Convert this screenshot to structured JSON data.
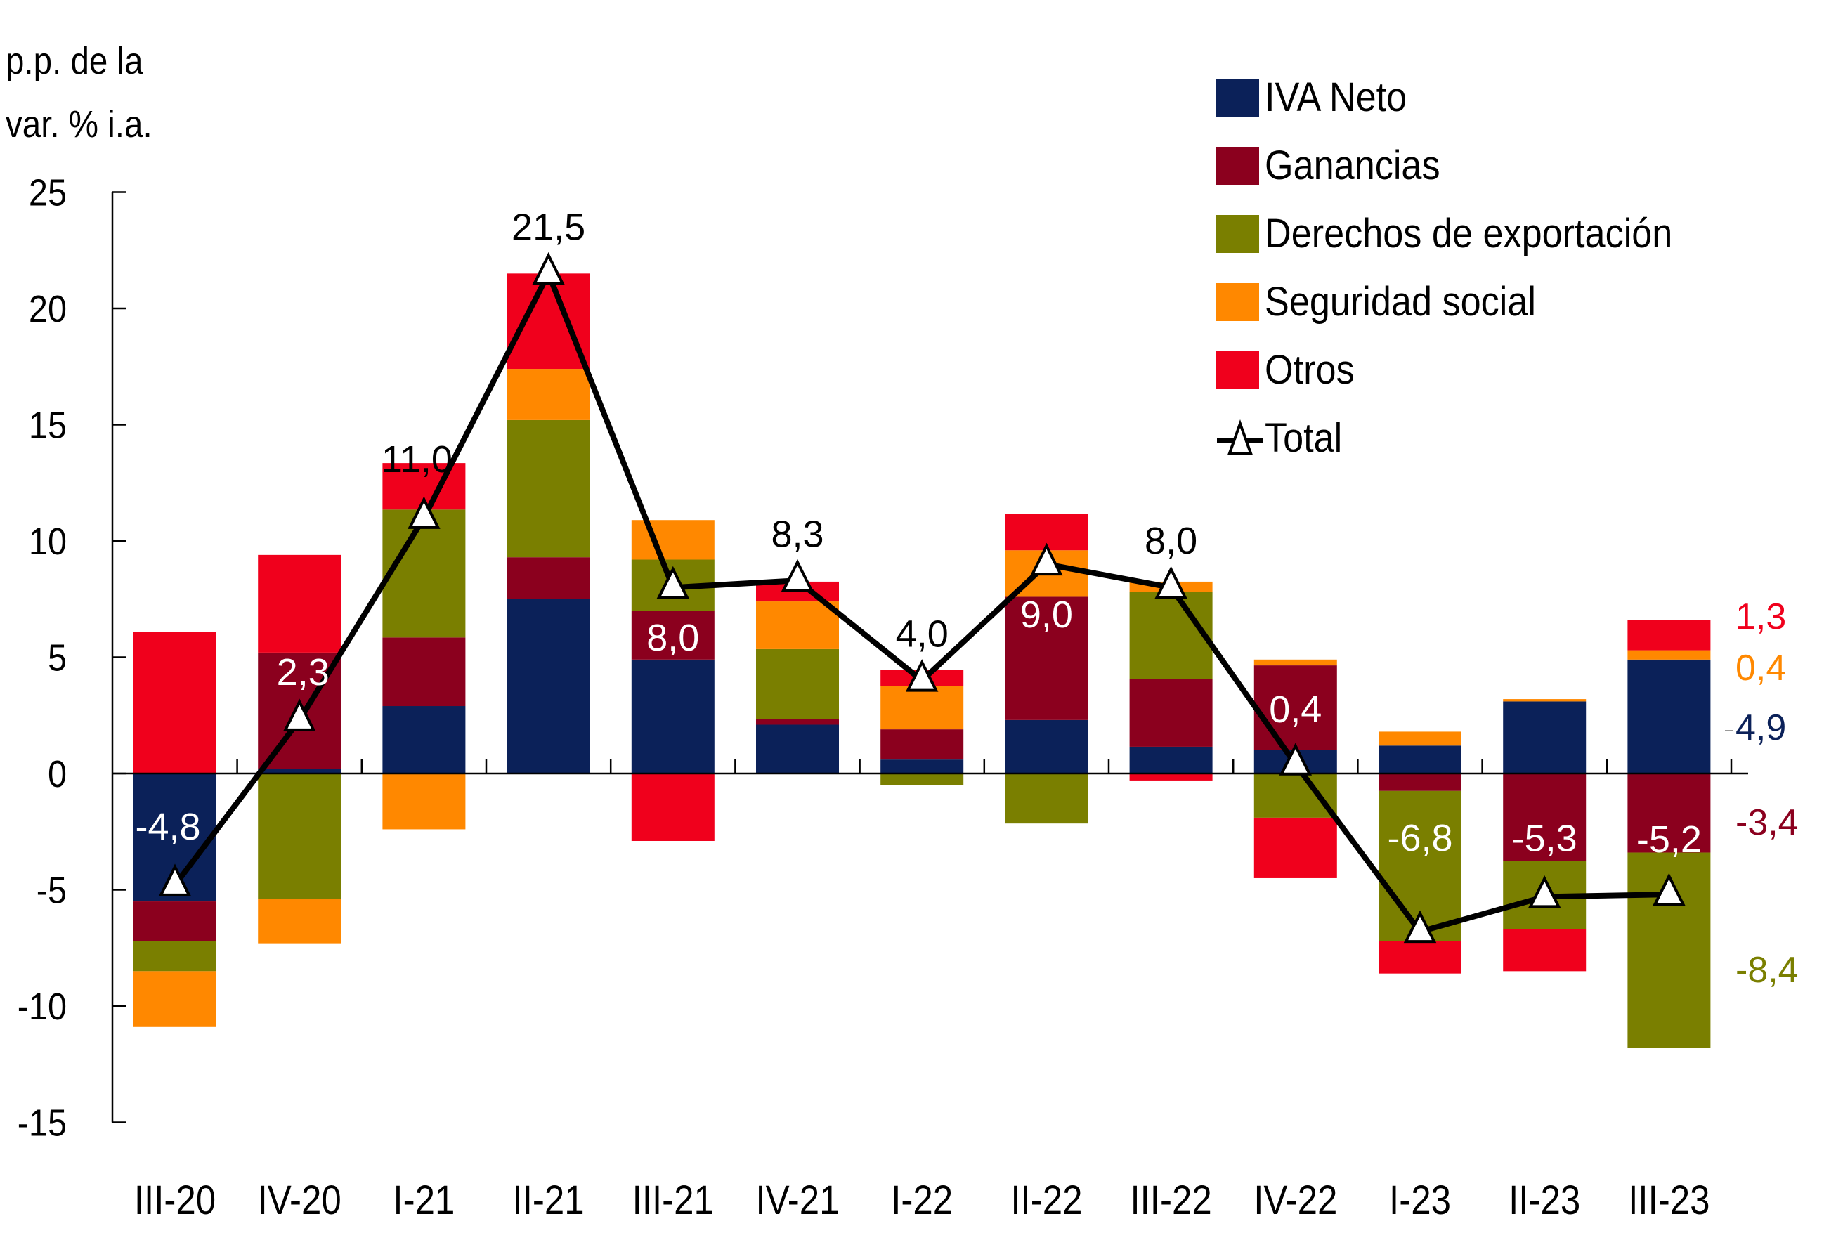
{
  "chart_data": {
    "type": "bar",
    "stacked": true,
    "title": "",
    "ylabel": "p.p. de la var. % i.a.",
    "ylabel_lines": [
      "p.p. de la",
      "var. % i.a."
    ],
    "xlabel": "",
    "ylim": [
      -15,
      25
    ],
    "yticks": [
      25,
      20,
      15,
      10,
      5,
      0,
      -5,
      -10,
      -15
    ],
    "grid": false,
    "legend_position": "top-right",
    "categories": [
      "III-20",
      "IV-20",
      "I-21",
      "II-21",
      "III-21",
      "IV-21",
      "I-22",
      "II-22",
      "III-22",
      "IV-22",
      "I-23",
      "II-23",
      "III-23"
    ],
    "series": [
      {
        "name": "IVA Neto",
        "color": "#0B2159",
        "values": [
          -5.5,
          0.2,
          2.9,
          7.5,
          4.9,
          2.1,
          0.6,
          2.3,
          1.15,
          1.0,
          1.2,
          3.1,
          4.9
        ]
      },
      {
        "name": "Ganancias",
        "color": "#8B001E",
        "values": [
          -1.7,
          5.0,
          2.95,
          1.8,
          2.1,
          0.25,
          1.3,
          5.3,
          2.9,
          3.65,
          -0.75,
          -3.75,
          -3.4
        ]
      },
      {
        "name": "Derechos de exportación",
        "color": "#7A7F00",
        "values": [
          -1.3,
          -5.4,
          5.5,
          5.9,
          2.2,
          3.0,
          -0.5,
          -2.15,
          3.75,
          -1.9,
          -6.45,
          -2.95,
          -8.4
        ]
      },
      {
        "name": "Seguridad social",
        "color": "#FF8800",
        "values": [
          -2.4,
          -1.9,
          -2.4,
          2.2,
          1.7,
          2.05,
          1.85,
          2.0,
          0.45,
          0.25,
          0.6,
          0.1,
          0.4
        ]
      },
      {
        "name": "Otros",
        "color": "#F0001C",
        "values": [
          6.1,
          4.2,
          2.0,
          4.1,
          -2.9,
          0.85,
          0.7,
          1.55,
          -0.3,
          -2.6,
          -1.4,
          -1.8,
          1.3
        ]
      }
    ],
    "line_series": {
      "name": "Total",
      "color": "#000000",
      "marker": "triangle",
      "values": [
        -4.8,
        2.3,
        11.0,
        21.5,
        8.0,
        8.3,
        4.0,
        9.0,
        8.0,
        0.4,
        -6.8,
        -5.3,
        -5.2
      ],
      "labels": [
        "-4,8",
        "2,3",
        "11,0",
        "21,5",
        "8,0",
        "8,3",
        "4,0",
        "9,0",
        "8,0",
        "0,4",
        "-6,8",
        "-5,3",
        "-5,2"
      ],
      "label_colors": [
        "#ffffff",
        "#ffffff",
        "#000000",
        "#000000",
        "#ffffff",
        "#000000",
        "#000000",
        "#ffffff",
        "#000000",
        "#ffffff",
        "#ffffff",
        "#ffffff",
        "#ffffff"
      ],
      "label_placement": [
        "above",
        "above",
        "above",
        "above",
        "below",
        "above",
        "above",
        "below",
        "above",
        "above",
        "above",
        "above",
        "above"
      ]
    },
    "annotations": [
      {
        "text": "1,3",
        "series": "Otros",
        "value": 1.3,
        "color": "#F0001C"
      },
      {
        "text": "0,4",
        "series": "Seguridad social",
        "value": 0.4,
        "color": "#FF8800"
      },
      {
        "text": "4,9",
        "series": "IVA Neto",
        "value": 4.9,
        "color": "#0B2159"
      },
      {
        "text": "-3,4",
        "series": "Ganancias",
        "value": -3.4,
        "color": "#8B001E"
      },
      {
        "text": "-8,4",
        "series": "Derechos de exportación",
        "value": -8.4,
        "color": "#7A7F00"
      }
    ]
  },
  "legend": {
    "items": [
      {
        "label": "IVA Neto",
        "color": "#0B2159"
      },
      {
        "label": "Ganancias",
        "color": "#8B001E"
      },
      {
        "label": "Derechos de exportación",
        "color": "#7A7F00"
      },
      {
        "label": "Seguridad social",
        "color": "#FF8800"
      },
      {
        "label": "Otros",
        "color": "#F0001C"
      },
      {
        "label": "Total",
        "marker": "triangle-line"
      }
    ]
  }
}
